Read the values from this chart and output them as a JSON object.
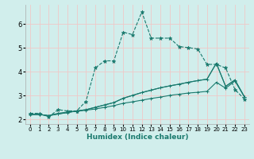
{
  "xlabel": "Humidex (Indice chaleur)",
  "bg_color": "#d1eeec",
  "grid_color": "#f0c8c8",
  "line_color": "#1a7a6e",
  "ylim": [
    1.8,
    6.8
  ],
  "xlim": [
    -0.5,
    23.5
  ],
  "yticks": [
    2,
    3,
    4,
    5,
    6
  ],
  "xticks": [
    0,
    1,
    2,
    3,
    4,
    5,
    6,
    7,
    8,
    9,
    10,
    11,
    12,
    13,
    14,
    15,
    16,
    17,
    18,
    19,
    20,
    21,
    22,
    23
  ],
  "series1_x": [
    0,
    1,
    2,
    3,
    4,
    5,
    6,
    7,
    8,
    9,
    10,
    11,
    12,
    13,
    14,
    15,
    16,
    17,
    18,
    19,
    20,
    21,
    22,
    23
  ],
  "series1_y": [
    2.25,
    2.25,
    2.1,
    2.4,
    2.35,
    2.35,
    2.75,
    4.15,
    4.45,
    4.45,
    5.65,
    5.55,
    6.5,
    5.4,
    5.4,
    5.4,
    5.05,
    5.0,
    4.95,
    4.3,
    4.3,
    4.15,
    3.25,
    2.85
  ],
  "series2_x": [
    0,
    1,
    2,
    3,
    4,
    5,
    6,
    7,
    8,
    9,
    10,
    11,
    12,
    13,
    14,
    15,
    16,
    17,
    18,
    19,
    20,
    21,
    22,
    23
  ],
  "series2_y": [
    2.2,
    2.2,
    2.15,
    2.25,
    2.3,
    2.33,
    2.38,
    2.43,
    2.5,
    2.57,
    2.67,
    2.73,
    2.8,
    2.87,
    2.93,
    3.0,
    3.05,
    3.1,
    3.13,
    3.17,
    3.55,
    3.3,
    3.6,
    2.95
  ],
  "series3_x": [
    0,
    1,
    2,
    3,
    4,
    5,
    6,
    7,
    8,
    9,
    10,
    11,
    12,
    13,
    14,
    15,
    16,
    17,
    18,
    19,
    20,
    21,
    22,
    23
  ],
  "series3_y": [
    2.2,
    2.2,
    2.15,
    2.22,
    2.28,
    2.35,
    2.4,
    2.5,
    2.6,
    2.7,
    2.88,
    3.0,
    3.12,
    3.22,
    3.32,
    3.4,
    3.47,
    3.55,
    3.62,
    3.68,
    4.35,
    3.38,
    3.65,
    2.95
  ],
  "series4_x": [
    0,
    1,
    2,
    3,
    4,
    5,
    6,
    7,
    8,
    9,
    10,
    11,
    12,
    13,
    14,
    15,
    16,
    17,
    18,
    19,
    20,
    21,
    22,
    23
  ],
  "series4_y": [
    2.2,
    2.2,
    2.15,
    2.22,
    2.28,
    2.35,
    2.4,
    2.5,
    2.6,
    2.7,
    2.88,
    3.0,
    3.12,
    3.22,
    3.32,
    3.4,
    3.47,
    3.55,
    3.62,
    3.68,
    4.35,
    3.38,
    3.65,
    2.95
  ]
}
